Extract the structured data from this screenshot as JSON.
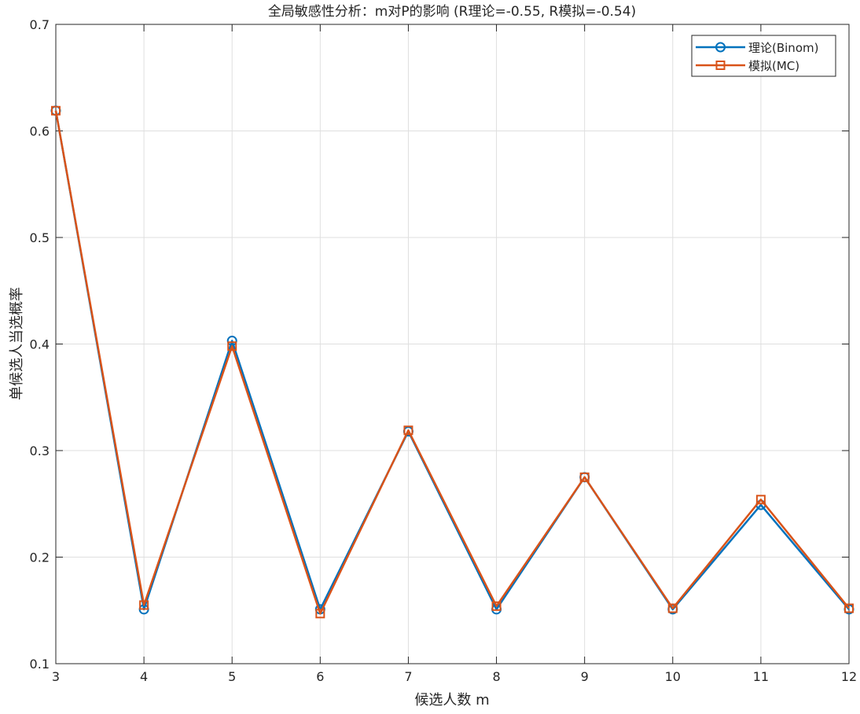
{
  "chart_data": {
    "type": "line",
    "title": "全局敏感性分析：m对P的影响 (R理论=-0.55, R模拟=-0.54)",
    "xlabel": "候选人数 m",
    "ylabel": "单候选人当选概率",
    "xlim": [
      3,
      12
    ],
    "ylim": [
      0.1,
      0.7
    ],
    "xticks": [
      3,
      4,
      5,
      6,
      7,
      8,
      9,
      10,
      11,
      12
    ],
    "yticks": [
      0.1,
      0.2,
      0.3,
      0.4,
      0.5,
      0.6,
      0.7
    ],
    "ytick_labels": [
      "0.1",
      "0.2",
      "0.3",
      "0.4",
      "0.5",
      "0.6",
      "0.7"
    ],
    "grid": true,
    "legend_position": "top-right",
    "x": [
      3,
      4,
      5,
      6,
      7,
      8,
      9,
      10,
      11,
      12
    ],
    "series": [
      {
        "name": "理论(Binom)",
        "marker": "circle",
        "color": "#0072BD",
        "values": [
          0.619,
          0.151,
          0.403,
          0.151,
          0.318,
          0.151,
          0.275,
          0.151,
          0.249,
          0.151
        ]
      },
      {
        "name": "模拟(MC)",
        "marker": "square",
        "color": "#D95319",
        "values": [
          0.619,
          0.155,
          0.398,
          0.147,
          0.319,
          0.154,
          0.275,
          0.152,
          0.254,
          0.152
        ]
      }
    ]
  }
}
